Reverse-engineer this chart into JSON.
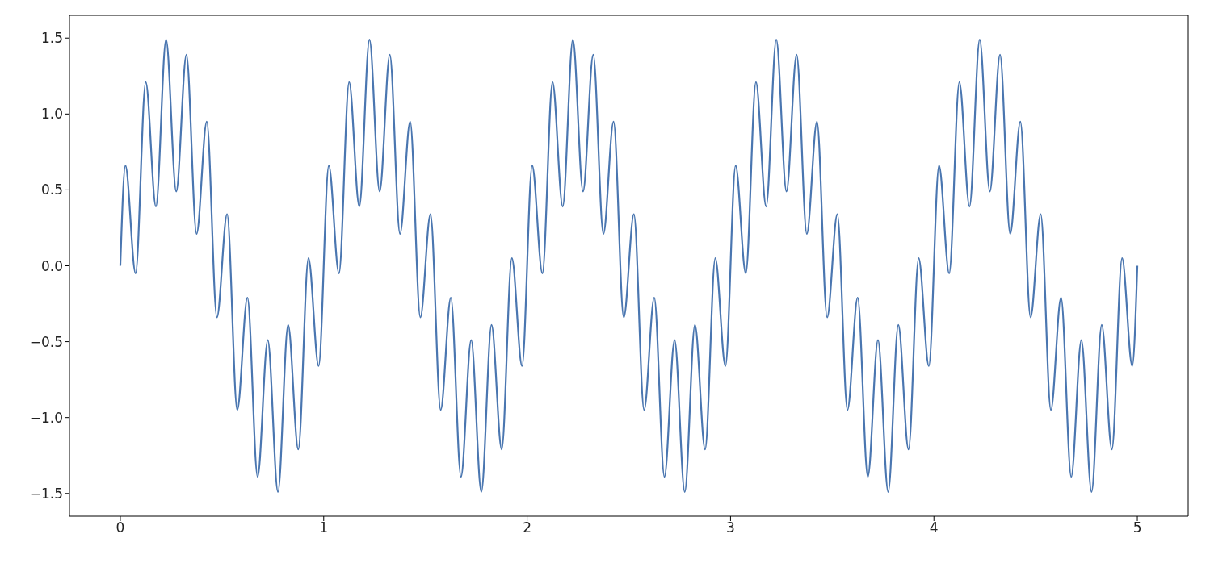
{
  "chart_data": {
    "type": "line",
    "x": [
      0,
      0.025,
      0.075,
      0.125,
      0.175,
      0.225,
      0.275,
      0.325,
      0.375,
      0.425,
      0.475,
      0.525,
      0.575,
      0.625,
      0.675,
      0.725,
      0.775,
      0.825,
      0.875,
      0.925,
      0.975,
      1.025,
      1.075,
      1.125,
      1.175,
      1.225,
      1.275,
      1.325,
      1.375,
      1.425,
      1.475,
      1.525,
      1.575,
      1.625,
      1.675,
      1.725,
      1.775,
      1.825,
      1.875,
      1.925,
      1.975,
      2.025,
      2.075,
      2.125,
      2.175,
      2.225,
      2.275,
      2.325,
      2.375,
      2.425,
      2.475,
      2.525,
      2.575,
      2.625,
      2.675,
      2.725,
      2.775,
      2.825,
      2.875,
      2.925,
      2.975,
      3.025,
      3.075,
      3.125,
      3.175,
      3.225,
      3.275,
      3.325,
      3.375,
      3.425,
      3.475,
      3.525,
      3.575,
      3.625,
      3.675,
      3.725,
      3.775,
      3.825,
      3.875,
      3.925,
      3.975,
      4.025,
      4.075,
      4.125,
      4.175,
      4.225,
      4.275,
      4.325,
      4.375,
      4.425,
      4.475,
      4.525,
      4.575,
      4.625,
      4.675,
      4.725,
      4.775,
      4.825,
      4.875,
      4.925,
      4.975,
      5
    ],
    "series": [
      {
        "color": "#4a76b0",
        "values": [
          0,
          0.66,
          -0.05,
          1.21,
          0.39,
          1.49,
          0.49,
          1.39,
          0.21,
          0.95,
          -0.34,
          0.34,
          -0.95,
          -0.21,
          -1.39,
          -0.49,
          -1.49,
          -0.39,
          -1.21,
          0.05,
          -0.66,
          0.66,
          -0.05,
          1.21,
          0.39,
          1.49,
          0.49,
          1.39,
          0.21,
          0.95,
          -0.34,
          0.34,
          -0.95,
          -0.21,
          -1.39,
          -0.49,
          -1.49,
          -0.39,
          -1.21,
          0.05,
          -0.66,
          0.66,
          -0.05,
          1.21,
          0.39,
          1.49,
          0.49,
          1.39,
          0.21,
          0.95,
          -0.34,
          0.34,
          -0.95,
          -0.21,
          -1.39,
          -0.49,
          -1.49,
          -0.39,
          -1.21,
          0.05,
          -0.66,
          0.66,
          -0.05,
          1.21,
          0.39,
          1.49,
          0.49,
          1.39,
          0.21,
          0.95,
          -0.34,
          0.34,
          -0.95,
          -0.21,
          -1.39,
          -0.49,
          -1.49,
          -0.39,
          -1.21,
          0.05,
          -0.66,
          0.66,
          -0.05,
          1.21,
          0.39,
          1.49,
          0.49,
          1.39,
          0.21,
          0.95,
          -0.34,
          0.34,
          -0.95,
          -0.21,
          -1.39,
          -0.49,
          -1.49,
          -0.39,
          -1.21,
          0.05,
          -0.66,
          0
        ]
      }
    ],
    "xlim": [
      -0.25,
      5.25
    ],
    "xticks": [
      0,
      1,
      2,
      3,
      4,
      5
    ],
    "ylim": [
      -1.65,
      1.65
    ],
    "yticks": [
      {
        "value": -1.5,
        "label": "−1.5"
      },
      {
        "value": -1,
        "label": "−1.0"
      },
      {
        "value": -0.5,
        "label": "−0.5"
      },
      {
        "value": 0,
        "label": "0.0"
      },
      0.5,
      {
        "value": 1,
        "label": "1.0"
      },
      1.5
    ],
    "grid": false,
    "marker": "none",
    "line_style": "solid"
  }
}
